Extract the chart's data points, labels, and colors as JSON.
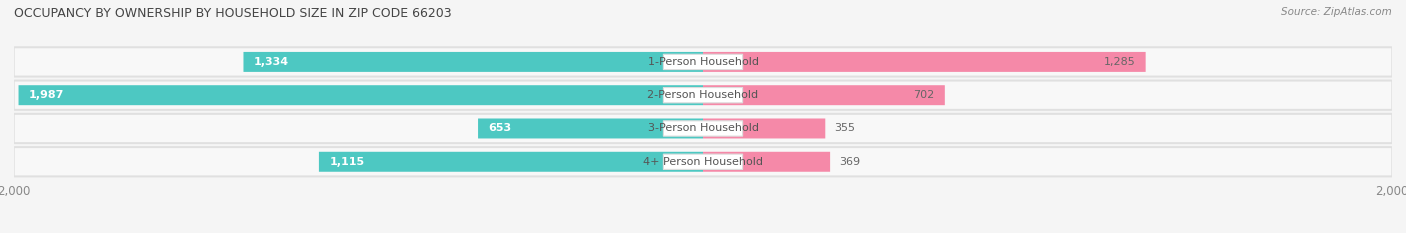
{
  "title": "OCCUPANCY BY OWNERSHIP BY HOUSEHOLD SIZE IN ZIP CODE 66203",
  "source": "Source: ZipAtlas.com",
  "categories": [
    "1-Person Household",
    "2-Person Household",
    "3-Person Household",
    "4+ Person Household"
  ],
  "owner_values": [
    1334,
    1987,
    653,
    1115
  ],
  "renter_values": [
    1285,
    702,
    355,
    369
  ],
  "max_scale": 2000,
  "owner_color": "#4dc8c2",
  "renter_color": "#f589a8",
  "row_bg_color": "#e8e8e8",
  "alt_row_bg_color": "#f0f0f0",
  "label_color": "#555555",
  "title_color": "#444444",
  "source_color": "#888888",
  "center_label_color": "#555555",
  "value_color_inside": "#ffffff",
  "value_color_outside": "#666666",
  "figsize": [
    14.06,
    2.33
  ],
  "dpi": 100
}
